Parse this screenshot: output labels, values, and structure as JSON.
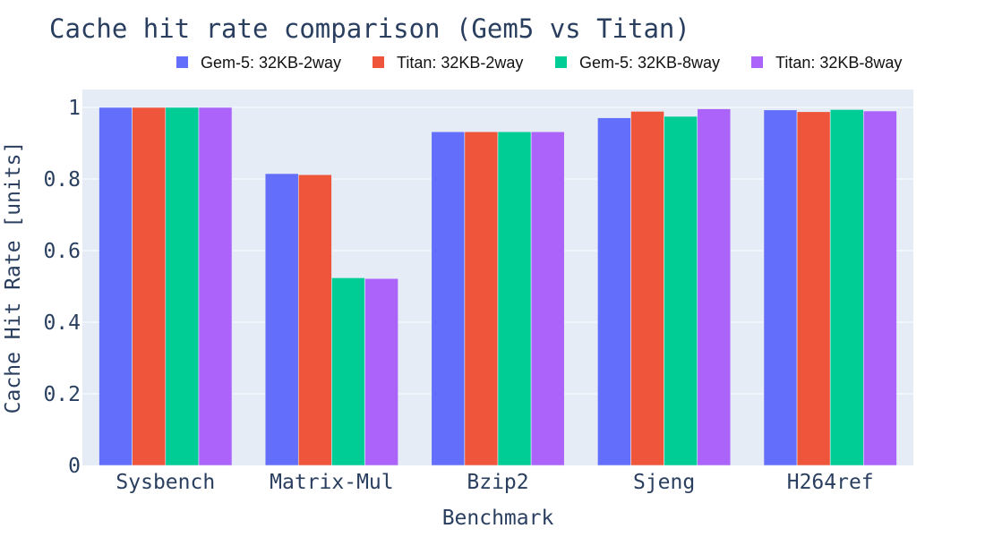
{
  "chart_data": {
    "type": "bar",
    "title": "Cache hit rate comparison (Gem5 vs Titan)",
    "xlabel": "Benchmark",
    "ylabel": "Cache Hit Rate [units]",
    "ylim": [
      0,
      1.05
    ],
    "yticks": [
      0,
      0.2,
      0.4,
      0.6,
      0.8,
      1
    ],
    "ytick_labels": [
      "0",
      "0.2",
      "0.4",
      "0.6",
      "0.8",
      "1"
    ],
    "grid": true,
    "legend_position": "top-right",
    "categories": [
      "Sysbench",
      "Matrix-Mul",
      "Bzip2",
      "Sjeng",
      "H264ref"
    ],
    "series": [
      {
        "name": "Gem-5: 32KB-2way",
        "color": "#636efa",
        "values": [
          1.0,
          0.815,
          0.932,
          0.971,
          0.993
        ]
      },
      {
        "name": "Titan: 32KB-2way",
        "color": "#ef553b",
        "values": [
          1.0,
          0.812,
          0.932,
          0.989,
          0.988
        ]
      },
      {
        "name": "Gem-5: 32KB-8way",
        "color": "#00cc96",
        "values": [
          1.0,
          0.524,
          0.932,
          0.975,
          0.994
        ]
      },
      {
        "name": "Titan: 32KB-8way",
        "color": "#ab63fa",
        "values": [
          1.0,
          0.522,
          0.932,
          0.996,
          0.99
        ]
      }
    ],
    "colors": {
      "plot_background": "#e5ecf6",
      "grid": "#ffffff",
      "text": "#2a3f5f"
    }
  }
}
